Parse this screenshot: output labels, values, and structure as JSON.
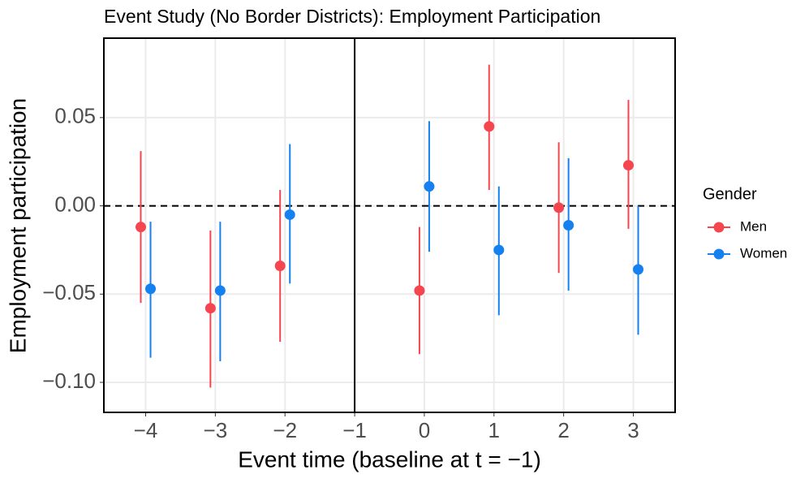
{
  "chart_data": {
    "type": "errorbar",
    "title": "Event Study (No Border Districts): Employment Participation",
    "x_label": "Event time (baseline at t = −1)",
    "y_label": "Employment participation",
    "legend_title": "Gender",
    "legend_position": "right",
    "x": [
      -4,
      -3,
      -2,
      0,
      1,
      2,
      3
    ],
    "series": [
      {
        "name": "Men",
        "color": "#F5454F",
        "values": [
          -0.012,
          -0.058,
          -0.034,
          -0.048,
          0.045,
          -0.001,
          0.023
        ],
        "lower": [
          -0.055,
          -0.103,
          -0.077,
          -0.084,
          0.009,
          -0.038,
          -0.013
        ],
        "upper": [
          0.031,
          -0.014,
          0.009,
          -0.012,
          0.08,
          0.036,
          0.06
        ]
      },
      {
        "name": "Women",
        "color": "#1580F0",
        "values": [
          -0.047,
          -0.048,
          -0.005,
          0.011,
          -0.025,
          -0.011,
          -0.036
        ],
        "lower": [
          -0.086,
          -0.088,
          -0.044,
          -0.026,
          -0.062,
          -0.048,
          -0.073
        ],
        "upper": [
          -0.009,
          -0.009,
          0.035,
          0.048,
          0.011,
          0.027,
          0.0
        ]
      }
    ],
    "xlim": [
      -4.6,
      3.6
    ],
    "ylim": [
      -0.117,
      0.095
    ],
    "xticks": [
      {
        "value": -4,
        "label": "−4"
      },
      {
        "value": -3,
        "label": "−3"
      },
      {
        "value": -2,
        "label": "−2"
      },
      {
        "value": -1,
        "label": "−1"
      },
      0,
      1,
      2,
      3
    ],
    "yticks": [
      {
        "value": -0.1,
        "label": "−0.10"
      },
      {
        "value": -0.05,
        "label": "−0.05"
      },
      {
        "value": 0,
        "label": "0.00"
      },
      {
        "value": 0.05,
        "label": "0.05"
      }
    ],
    "reference_x": -1,
    "reference_y": 0,
    "grid": true
  }
}
